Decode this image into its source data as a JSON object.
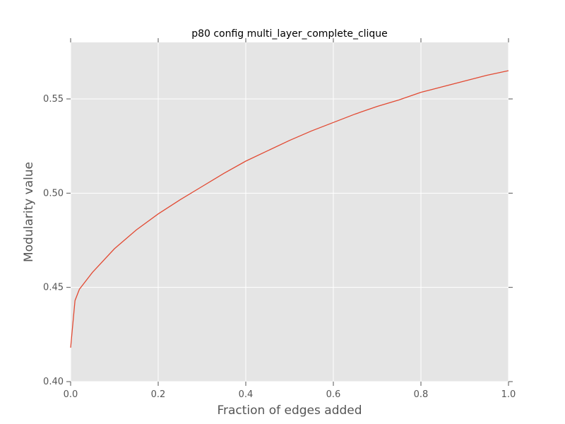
{
  "chart_data": {
    "type": "line",
    "title": "p80 config multi_layer_complete_clique",
    "xlabel": "Fraction of edges added",
    "ylabel": "Modularity value",
    "xlim": [
      0.0,
      1.0
    ],
    "ylim": [
      0.4,
      0.58
    ],
    "xticks": [
      0.0,
      0.2,
      0.4,
      0.6,
      0.8,
      1.0
    ],
    "xtick_labels": [
      "0.0",
      "0.2",
      "0.4",
      "0.6",
      "0.8",
      "1.0"
    ],
    "yticks": [
      0.4,
      0.45,
      0.5,
      0.55
    ],
    "ytick_labels": [
      "0.40",
      "0.45",
      "0.50",
      "0.55"
    ],
    "grid": true,
    "background": "#e5e5e5",
    "series": [
      {
        "color": "#e24a33",
        "x": [
          0.0,
          0.01,
          0.02,
          0.05,
          0.1,
          0.15,
          0.2,
          0.25,
          0.3,
          0.35,
          0.4,
          0.45,
          0.5,
          0.55,
          0.6,
          0.65,
          0.7,
          0.75,
          0.8,
          0.85,
          0.9,
          0.95,
          1.0
        ],
        "y": [
          0.418,
          0.443,
          0.449,
          0.458,
          0.4705,
          0.4805,
          0.489,
          0.4965,
          0.5035,
          0.5105,
          0.517,
          0.5225,
          0.528,
          0.533,
          0.5375,
          0.542,
          0.546,
          0.5495,
          0.5535,
          0.5565,
          0.5595,
          0.5625,
          0.565
        ]
      }
    ]
  }
}
